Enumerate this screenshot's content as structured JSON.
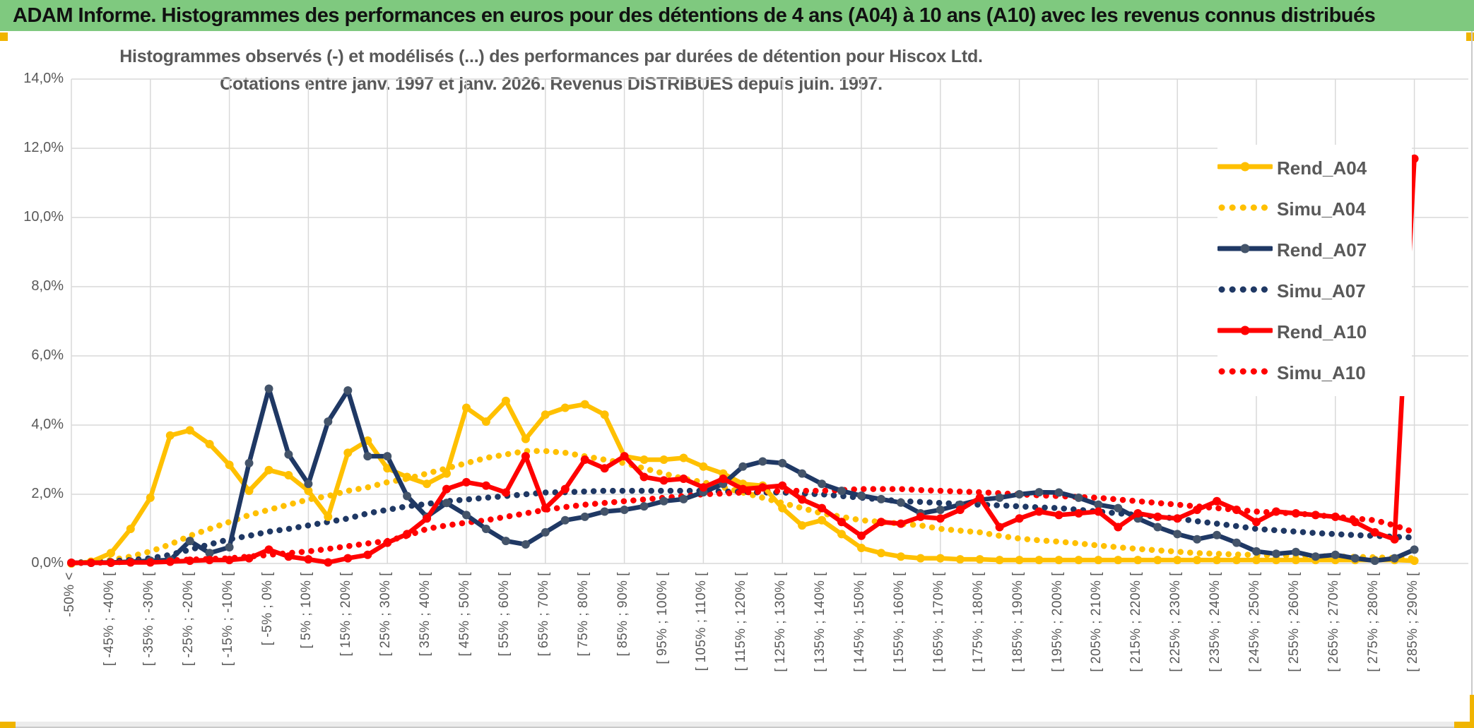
{
  "header": {
    "title": "ADAM Informe. Histogrammes des performances en euros pour des détentions de 4 ans (A04) à 10 ans (A10) avec les revenus connus distribués"
  },
  "colors": {
    "header_green": "#7FC97F",
    "gold": "#FFC000",
    "navy": "#1F3864",
    "navy_marker": "#44546A",
    "red": "#FF0000",
    "grid": "#D9D9D9",
    "text_gray": "#595959",
    "corner_accent": "#F0B400"
  },
  "chart_data": {
    "type": "line",
    "title_line1": "Histogrammes observés (-) et modélisés (...) des performances par durées de détention pour Hiscox Ltd.",
    "title_line2": "Cotations entre janv. 1997 et janv. 2026. Revenus DISTRIBUES depuis juin. 1997.",
    "ylabel": "",
    "xlabel": "",
    "ylim": [
      0,
      14
    ],
    "y_tick_labels": [
      "0,0%",
      "2,0%",
      "4,0%",
      "6,0%",
      "8,0%",
      "10,0%",
      "12,0%",
      "14,0%"
    ],
    "grid": true,
    "legend_position": "right-upper",
    "n_buckets": 69,
    "note": "x axis = 5%-wide performance buckets from below -50% to [285%;290%[; labels shown every second bucket",
    "categories": [
      "-50% <",
      "[ -45% ; -40% [",
      "[ -35% ; -30% [",
      "[ -25% ; -20% [",
      "[ -15% ; -10% [",
      "[ -5% ; 0% [",
      "[ 5% ; 10% [",
      "[ 15% ; 20% [",
      "[ 25% ; 30% [",
      "[ 35% ; 40% [",
      "[ 45% ; 50% [",
      "[ 55% ; 60% [",
      "[ 65% ; 70% [",
      "[ 75% ; 80% [",
      "[ 85% ; 90% [",
      "[ 95% ; 100% [",
      "[ 105% ; 110% [",
      "[ 115% ; 120% [",
      "[ 125% ; 130% [",
      "[ 135% ; 140% [",
      "[ 145% ; 150% [",
      "[ 155% ; 160% [",
      "[ 165% ; 170% [",
      "[ 175% ; 180% [",
      "[ 185% ; 190% [",
      "[ 195% ; 200% [",
      "[ 205% ; 210% [",
      "[ 215% ; 220% [",
      "[ 225% ; 230% [",
      "[ 235% ; 240% [",
      "[ 245% ; 250% [",
      "[ 255% ; 260% [",
      "[ 265% ; 270% [",
      "[ 275% ; 280% [",
      "[ 285% ; 290% ["
    ],
    "series": [
      {
        "name": "Rend_A04",
        "color": "#FFC000",
        "marker_color": "#FFC000",
        "style": "solid",
        "values": [
          0.0,
          0.05,
          0.3,
          1.0,
          1.9,
          3.7,
          3.85,
          3.45,
          2.85,
          2.1,
          2.7,
          2.55,
          2.1,
          1.35,
          3.2,
          3.55,
          2.75,
          2.5,
          2.3,
          2.6,
          4.5,
          4.1,
          4.7,
          3.6,
          4.3,
          4.5,
          4.6,
          4.3,
          3.1,
          3.0,
          3.0,
          3.05,
          2.8,
          2.6,
          2.3,
          2.25,
          1.6,
          1.1,
          1.25,
          0.85,
          0.45,
          0.3,
          0.2,
          0.15,
          0.15,
          0.12,
          0.12,
          0.1,
          0.1,
          0.1,
          0.1,
          0.1,
          0.1,
          0.1,
          0.1,
          0.1,
          0.1,
          0.1,
          0.1,
          0.1,
          0.1,
          0.1,
          0.1,
          0.1,
          0.1,
          0.1,
          0.1,
          0.1,
          0.08
        ]
      },
      {
        "name": "Simu_A04",
        "color": "#FFC000",
        "style": "dotted",
        "values": [
          0.02,
          0.05,
          0.1,
          0.2,
          0.35,
          0.55,
          0.8,
          1.0,
          1.2,
          1.4,
          1.55,
          1.7,
          1.85,
          1.95,
          2.1,
          2.2,
          2.35,
          2.45,
          2.6,
          2.75,
          2.9,
          3.05,
          3.15,
          3.25,
          3.25,
          3.2,
          3.1,
          3.0,
          2.9,
          2.75,
          2.6,
          2.45,
          2.35,
          2.2,
          2.05,
          1.9,
          1.75,
          1.6,
          1.45,
          1.35,
          1.25,
          1.2,
          1.15,
          1.1,
          1.0,
          0.95,
          0.9,
          0.8,
          0.72,
          0.67,
          0.63,
          0.58,
          0.52,
          0.47,
          0.42,
          0.38,
          0.34,
          0.3,
          0.28,
          0.26,
          0.25,
          0.23,
          0.22,
          0.21,
          0.2,
          0.19,
          0.18,
          0.16,
          0.15
        ]
      },
      {
        "name": "Rend_A07",
        "color": "#1F3864",
        "marker_color": "#44546A",
        "style": "solid",
        "values": [
          0.02,
          0.02,
          0.03,
          0.05,
          0.08,
          0.1,
          0.65,
          0.3,
          0.47,
          2.9,
          5.05,
          3.15,
          2.3,
          4.1,
          5.0,
          3.1,
          3.1,
          1.95,
          1.35,
          1.75,
          1.4,
          1.0,
          0.65,
          0.55,
          0.9,
          1.25,
          1.35,
          1.5,
          1.55,
          1.65,
          1.8,
          1.86,
          2.06,
          2.3,
          2.8,
          2.95,
          2.9,
          2.6,
          2.3,
          2.1,
          1.96,
          1.86,
          1.76,
          1.45,
          1.55,
          1.7,
          1.84,
          1.9,
          2.0,
          2.06,
          2.05,
          1.9,
          1.7,
          1.6,
          1.3,
          1.05,
          0.85,
          0.7,
          0.82,
          0.6,
          0.35,
          0.28,
          0.33,
          0.2,
          0.25,
          0.15,
          0.08,
          0.15,
          0.4
        ]
      },
      {
        "name": "Simu_A07",
        "color": "#1F3864",
        "style": "dotted",
        "values": [
          0.02,
          0.04,
          0.07,
          0.1,
          0.15,
          0.25,
          0.4,
          0.55,
          0.7,
          0.8,
          0.92,
          1.0,
          1.1,
          1.2,
          1.3,
          1.45,
          1.55,
          1.65,
          1.72,
          1.8,
          1.85,
          1.9,
          1.95,
          2.0,
          2.05,
          2.06,
          2.08,
          2.1,
          2.1,
          2.1,
          2.1,
          2.1,
          2.1,
          2.08,
          2.07,
          2.05,
          2.05,
          2.02,
          2.0,
          1.95,
          1.9,
          1.85,
          1.8,
          1.78,
          1.75,
          1.72,
          1.7,
          1.68,
          1.65,
          1.62,
          1.6,
          1.55,
          1.5,
          1.45,
          1.4,
          1.35,
          1.3,
          1.22,
          1.15,
          1.08,
          1.0,
          0.96,
          0.92,
          0.88,
          0.85,
          0.82,
          0.8,
          0.77,
          0.75
        ]
      },
      {
        "name": "Rend_A10",
        "color": "#FF0000",
        "marker_color": "#FF0000",
        "style": "solid",
        "values": [
          0.02,
          0.02,
          0.02,
          0.03,
          0.03,
          0.05,
          0.08,
          0.1,
          0.1,
          0.15,
          0.4,
          0.2,
          0.12,
          0.03,
          0.15,
          0.25,
          0.6,
          0.85,
          1.3,
          2.15,
          2.35,
          2.25,
          2.05,
          3.1,
          1.6,
          2.15,
          3.0,
          2.75,
          3.1,
          2.5,
          2.4,
          2.45,
          2.2,
          2.45,
          2.15,
          2.2,
          2.25,
          1.85,
          1.6,
          1.2,
          0.8,
          1.2,
          1.15,
          1.35,
          1.3,
          1.55,
          1.9,
          1.05,
          1.3,
          1.5,
          1.4,
          1.45,
          1.5,
          1.05,
          1.45,
          1.35,
          1.3,
          1.55,
          1.8,
          1.55,
          1.2,
          1.5,
          1.45,
          1.4,
          1.35,
          1.2,
          0.9,
          0.7,
          11.7
        ]
      },
      {
        "name": "Simu_A10",
        "color": "#FF0000",
        "style": "dotted",
        "values": [
          0.01,
          0.02,
          0.03,
          0.05,
          0.07,
          0.09,
          0.11,
          0.13,
          0.15,
          0.2,
          0.25,
          0.3,
          0.35,
          0.42,
          0.5,
          0.58,
          0.65,
          0.8,
          1.0,
          1.1,
          1.18,
          1.25,
          1.35,
          1.45,
          1.55,
          1.63,
          1.7,
          1.75,
          1.8,
          1.85,
          1.9,
          1.95,
          2.0,
          2.02,
          2.05,
          2.08,
          2.1,
          2.1,
          2.1,
          2.12,
          2.15,
          2.15,
          2.15,
          2.12,
          2.1,
          2.08,
          2.06,
          2.03,
          2.0,
          1.97,
          1.95,
          1.92,
          1.9,
          1.85,
          1.8,
          1.75,
          1.7,
          1.65,
          1.6,
          1.55,
          1.5,
          1.47,
          1.45,
          1.4,
          1.35,
          1.3,
          1.25,
          1.1,
          0.9
        ]
      }
    ]
  }
}
